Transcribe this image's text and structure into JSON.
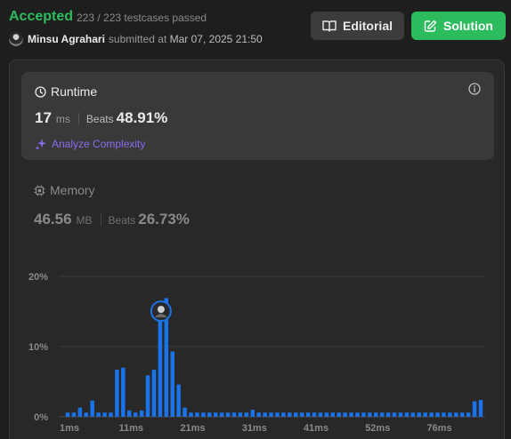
{
  "header": {
    "status": "Accepted",
    "testcases": "223 / 223 testcases passed",
    "author": "Minsu Agrahari",
    "submitted_prefix": "submitted at",
    "submitted_date": "Mar 07, 2025 21:50",
    "editorial_label": "Editorial",
    "solution_label": "Solution"
  },
  "runtime": {
    "title": "Runtime",
    "value": "17",
    "unit": "ms",
    "beats_label": "Beats",
    "beats_value": "48.91%",
    "analyze_label": "Analyze Complexity"
  },
  "memory": {
    "title": "Memory",
    "value": "46.56",
    "unit": "MB",
    "beats_label": "Beats",
    "beats_value": "26.73%"
  },
  "colors": {
    "accepted": "#2cbb5d",
    "bar": "#1a73e8",
    "analyze": "#8b6cf0"
  },
  "chart_data": {
    "type": "bar",
    "y_ticks": [
      "20%",
      "10%",
      "0%"
    ],
    "ylim": [
      0,
      20
    ],
    "x_ticks": [
      "1ms",
      "11ms",
      "21ms",
      "31ms",
      "41ms",
      "52ms",
      "76ms"
    ],
    "values": [
      0.6,
      0.6,
      1.3,
      0.6,
      2.3,
      0.6,
      0.6,
      0.6,
      6.7,
      7.0,
      0.9,
      0.6,
      0.9,
      5.9,
      6.7,
      15.3,
      16.9,
      9.3,
      4.6,
      1.3,
      0.6,
      0.6,
      0.6,
      0.6,
      0.6,
      0.6,
      0.6,
      0.6,
      0.6,
      0.6,
      1.0,
      0.6,
      0.6,
      0.6,
      0.6,
      0.6,
      0.6,
      0.6,
      0.6,
      0.6,
      0.6,
      0.6,
      0.6,
      0.6,
      0.6,
      0.6,
      0.6,
      0.6,
      0.6,
      0.6,
      0.6,
      0.6,
      0.6,
      0.6,
      0.6,
      0.6,
      0.6,
      0.6,
      0.6,
      0.6,
      0.6,
      0.6,
      0.6,
      0.6,
      0.6,
      0.6,
      2.2,
      2.4
    ],
    "highlight_index": 15
  }
}
